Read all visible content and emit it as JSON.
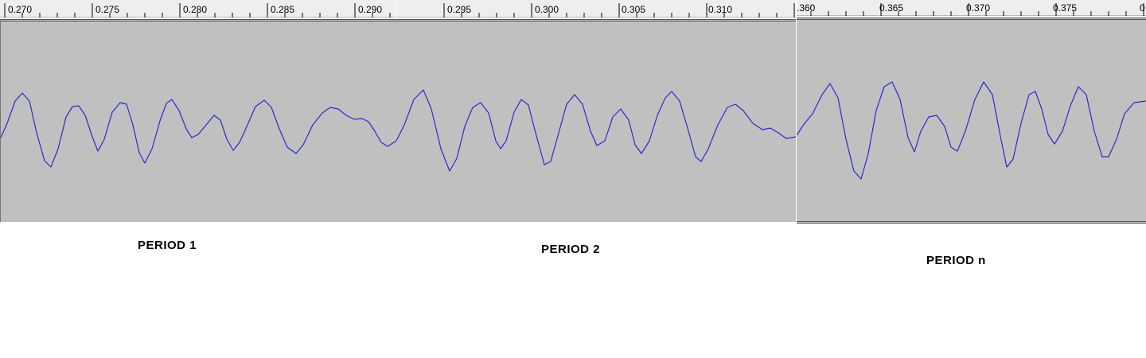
{
  "panels": [
    {
      "name": "period-1",
      "label": "PERIOD 1",
      "ticks": [
        "0.270",
        "0.275",
        "0.280",
        "0.285",
        "0.290"
      ]
    },
    {
      "name": "period-2",
      "label": "PERIOD 2",
      "ticks": [
        "0.295",
        "0.300",
        "0.305",
        "0.310"
      ]
    },
    {
      "name": "period-n",
      "label": "PERIOD n",
      "ticks": [
        ".360",
        "0.365",
        "0.370",
        "0.375",
        "0"
      ]
    }
  ],
  "colors": {
    "waveform": "#2a2acc",
    "track_background": "#c0c0c0",
    "ruler_background": "#eeeeee"
  }
}
